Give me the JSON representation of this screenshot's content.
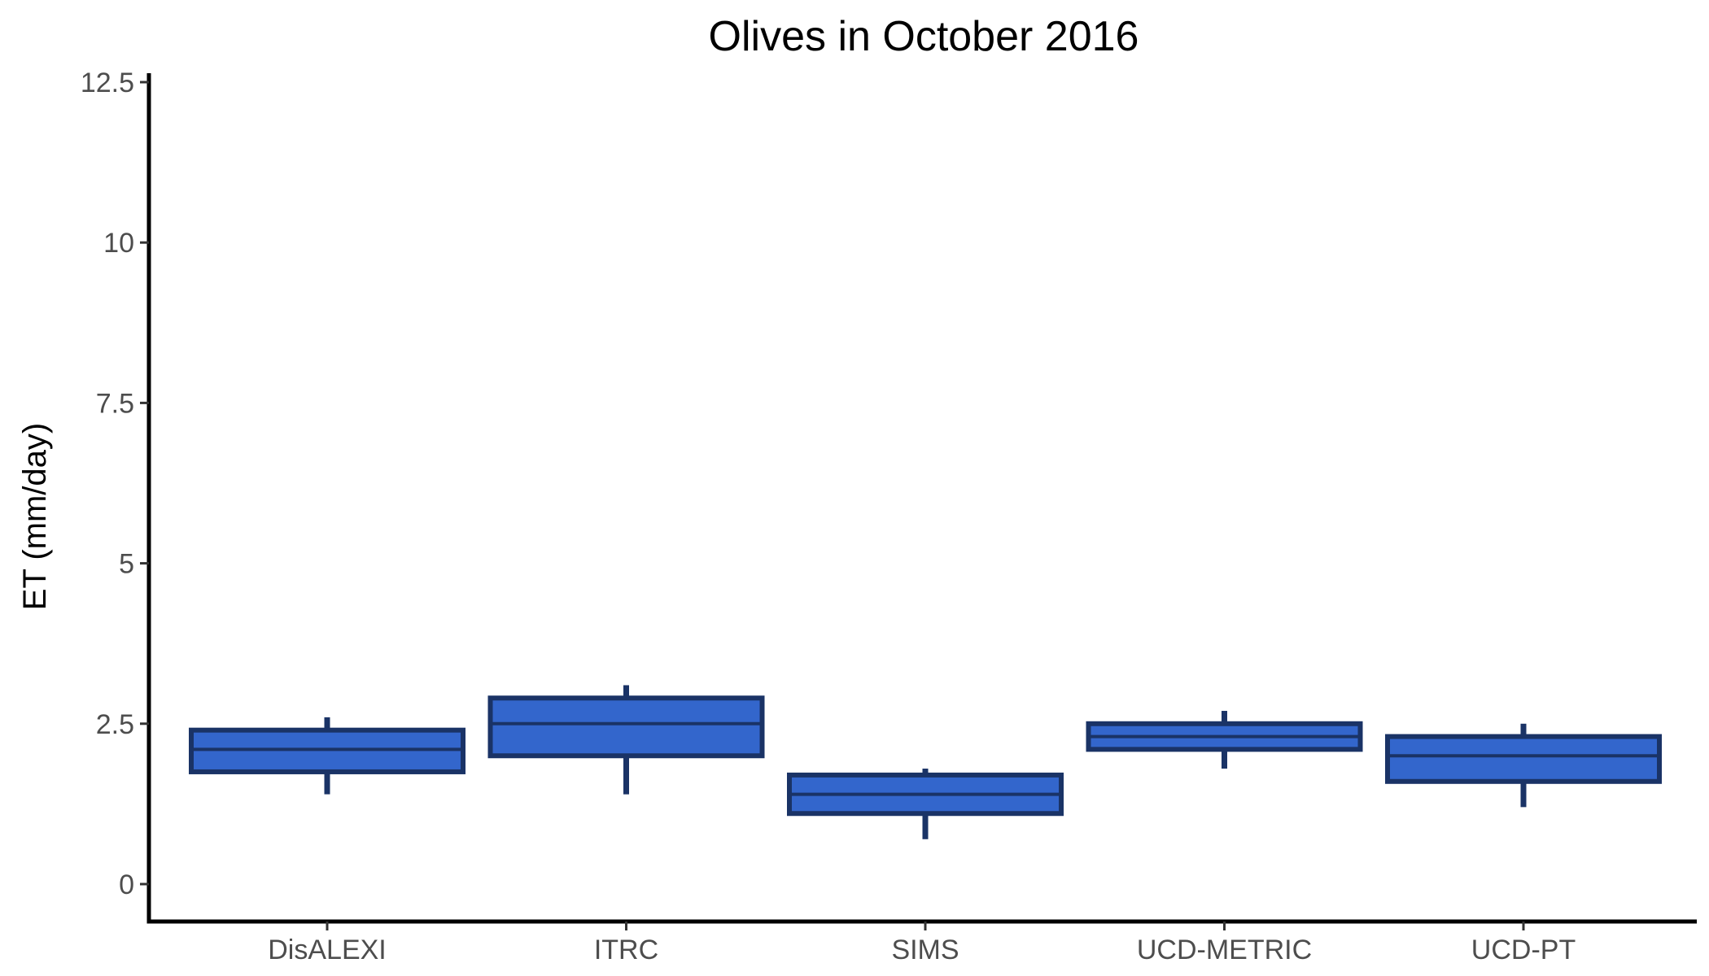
{
  "chart_data": {
    "type": "box",
    "title": "Olives in October 2016",
    "xlabel": "",
    "ylabel": "ET (mm/day)",
    "ylim": [
      -0.6,
      12.6
    ],
    "yticks": [
      0,
      2.5,
      5,
      7.5,
      10,
      12.5
    ],
    "ytick_labels": [
      "0",
      "2.5",
      "5",
      "7.5",
      "10",
      "12.5"
    ],
    "grid": false,
    "box_fill": "#3366cc",
    "box_stroke": "#1a3366",
    "categories": [
      "DisALEXI",
      "ITRC",
      "SIMS",
      "UCD-METRIC",
      "UCD-PT"
    ],
    "boxes": [
      {
        "min": 1.4,
        "q1": 1.75,
        "median": 2.1,
        "q3": 2.4,
        "max": 2.6
      },
      {
        "min": 1.4,
        "q1": 2.0,
        "median": 2.5,
        "q3": 2.9,
        "max": 3.1
      },
      {
        "min": 0.7,
        "q1": 1.1,
        "median": 1.4,
        "q3": 1.7,
        "max": 1.8
      },
      {
        "min": 1.8,
        "q1": 2.1,
        "median": 2.3,
        "q3": 2.5,
        "max": 2.7
      },
      {
        "min": 1.2,
        "q1": 1.6,
        "median": 2.0,
        "q3": 2.3,
        "max": 2.5
      }
    ]
  }
}
